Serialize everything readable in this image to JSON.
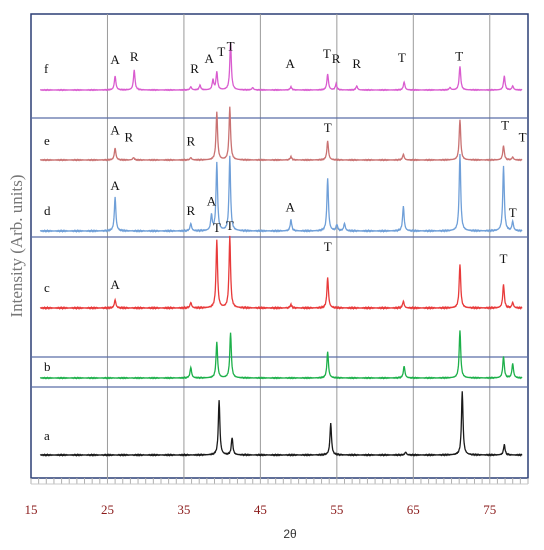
{
  "chart_data": {
    "type": "line",
    "xlabel": "2θ",
    "ylabel": "Intensity (Arb. units)",
    "xlim": [
      15,
      80
    ],
    "x_ticks": [
      15,
      25,
      35,
      45,
      55,
      65,
      75
    ],
    "grid": true,
    "series": [
      {
        "name": "a",
        "color": "#1a1a1a",
        "peaks": [
          {
            "x": 39.6,
            "h": 0.95
          },
          {
            "x": 41.3,
            "h": 0.3
          },
          {
            "x": 54.2,
            "h": 0.55
          },
          {
            "x": 64.0,
            "h": 0.05
          },
          {
            "x": 71.4,
            "h": 1.1
          },
          {
            "x": 76.9,
            "h": 0.18
          }
        ],
        "labels": []
      },
      {
        "name": "b",
        "color": "#1db04a",
        "peaks": [
          {
            "x": 35.9,
            "h": 0.22
          },
          {
            "x": 39.3,
            "h": 0.75
          },
          {
            "x": 41.1,
            "h": 0.95
          },
          {
            "x": 53.8,
            "h": 0.55
          },
          {
            "x": 63.8,
            "h": 0.25
          },
          {
            "x": 71.1,
            "h": 1.0
          },
          {
            "x": 76.8,
            "h": 0.45
          },
          {
            "x": 78.0,
            "h": 0.3
          }
        ],
        "labels": []
      },
      {
        "name": "c",
        "color": "#e83a3a",
        "peaks": [
          {
            "x": 26.0,
            "h": 0.12
          },
          {
            "x": 35.9,
            "h": 0.08
          },
          {
            "x": 39.3,
            "h": 1.0
          },
          {
            "x": 41.0,
            "h": 1.05
          },
          {
            "x": 49.0,
            "h": 0.05
          },
          {
            "x": 53.8,
            "h": 0.45
          },
          {
            "x": 63.7,
            "h": 0.1
          },
          {
            "x": 71.1,
            "h": 0.65
          },
          {
            "x": 76.8,
            "h": 0.35
          },
          {
            "x": 78.0,
            "h": 0.08
          }
        ],
        "labels": [
          {
            "x": 26.0,
            "text": "A",
            "dy": 0.22
          },
          {
            "x": 39.3,
            "text": "T",
            "dy": 1.06
          },
          {
            "x": 41.0,
            "text": "T",
            "dy": 1.09
          },
          {
            "x": 53.8,
            "text": "T",
            "dy": 0.78
          },
          {
            "x": 76.8,
            "text": "T",
            "dy": 0.6
          }
        ]
      },
      {
        "name": "d",
        "color": "#6f9fd8",
        "peaks": [
          {
            "x": 26.0,
            "h": 0.55
          },
          {
            "x": 35.9,
            "h": 0.12
          },
          {
            "x": 38.6,
            "h": 0.25
          },
          {
            "x": 39.3,
            "h": 1.1
          },
          {
            "x": 41.0,
            "h": 1.2
          },
          {
            "x": 49.0,
            "h": 0.18
          },
          {
            "x": 53.8,
            "h": 0.85
          },
          {
            "x": 55.0,
            "h": 0.1
          },
          {
            "x": 56.0,
            "h": 0.12
          },
          {
            "x": 63.7,
            "h": 0.4
          },
          {
            "x": 71.1,
            "h": 1.25
          },
          {
            "x": 76.8,
            "h": 1.05
          },
          {
            "x": 78.0,
            "h": 0.15
          }
        ],
        "labels": [
          {
            "x": 26.0,
            "text": "A",
            "dy": 0.6
          },
          {
            "x": 35.9,
            "text": "R",
            "dy": 0.19
          },
          {
            "x": 38.6,
            "text": "A",
            "dy": 0.35
          },
          {
            "x": 48.9,
            "text": "A",
            "dy": 0.25
          },
          {
            "x": 78.0,
            "text": "T",
            "dy": 0.16
          }
        ]
      },
      {
        "name": "e",
        "color": "#c97272",
        "peaks": [
          {
            "x": 26.0,
            "h": 0.25
          },
          {
            "x": 28.4,
            "h": 0.05
          },
          {
            "x": 35.9,
            "h": 0.05
          },
          {
            "x": 39.3,
            "h": 1.0
          },
          {
            "x": 41.0,
            "h": 1.1
          },
          {
            "x": 49.0,
            "h": 0.07
          },
          {
            "x": 53.8,
            "h": 0.4
          },
          {
            "x": 63.7,
            "h": 0.12
          },
          {
            "x": 71.1,
            "h": 0.85
          },
          {
            "x": 76.8,
            "h": 0.3
          },
          {
            "x": 78.0,
            "h": 0.06
          }
        ],
        "labels": [
          {
            "x": 26.0,
            "text": "A",
            "dy": 0.45
          },
          {
            "x": 27.8,
            "text": "R",
            "dy": 0.3
          },
          {
            "x": 35.9,
            "text": "R",
            "dy": 0.22
          },
          {
            "x": 53.8,
            "text": "T",
            "dy": 0.5
          },
          {
            "x": 77.0,
            "text": "T",
            "dy": 0.55
          },
          {
            "x": 79.3,
            "text": "T",
            "dy": 0.3
          }
        ]
      },
      {
        "name": "f",
        "color": "#d95ccf",
        "peaks": [
          {
            "x": 26.0,
            "h": 0.35
          },
          {
            "x": 28.5,
            "h": 0.5
          },
          {
            "x": 35.9,
            "h": 0.08
          },
          {
            "x": 37.1,
            "h": 0.12
          },
          {
            "x": 38.8,
            "h": 0.25
          },
          {
            "x": 39.3,
            "h": 0.45
          },
          {
            "x": 41.1,
            "h": 1.2
          },
          {
            "x": 44.0,
            "h": 0.06
          },
          {
            "x": 49.0,
            "h": 0.08
          },
          {
            "x": 53.8,
            "h": 0.4
          },
          {
            "x": 54.9,
            "h": 0.15
          },
          {
            "x": 57.6,
            "h": 0.1
          },
          {
            "x": 63.8,
            "h": 0.2
          },
          {
            "x": 69.8,
            "h": 0.06
          },
          {
            "x": 71.1,
            "h": 0.6
          },
          {
            "x": 76.9,
            "h": 0.35
          },
          {
            "x": 78.0,
            "h": 0.1
          }
        ],
        "labels": [
          {
            "x": 26.0,
            "text": "A",
            "dy": 0.55
          },
          {
            "x": 28.5,
            "text": "R",
            "dy": 0.62
          },
          {
            "x": 36.4,
            "text": "R",
            "dy": 0.33
          },
          {
            "x": 38.3,
            "text": "A",
            "dy": 0.58
          },
          {
            "x": 39.9,
            "text": "T",
            "dy": 0.75
          },
          {
            "x": 41.1,
            "text": "T",
            "dy": 0.89
          },
          {
            "x": 48.9,
            "text": "A",
            "dy": 0.45
          },
          {
            "x": 53.7,
            "text": "T",
            "dy": 0.7
          },
          {
            "x": 54.9,
            "text": "R",
            "dy": 0.58
          },
          {
            "x": 57.6,
            "text": "R",
            "dy": 0.45
          },
          {
            "x": 63.5,
            "text": "T",
            "dy": 0.6
          },
          {
            "x": 71.0,
            "text": "T",
            "dy": 0.64
          }
        ]
      }
    ]
  }
}
